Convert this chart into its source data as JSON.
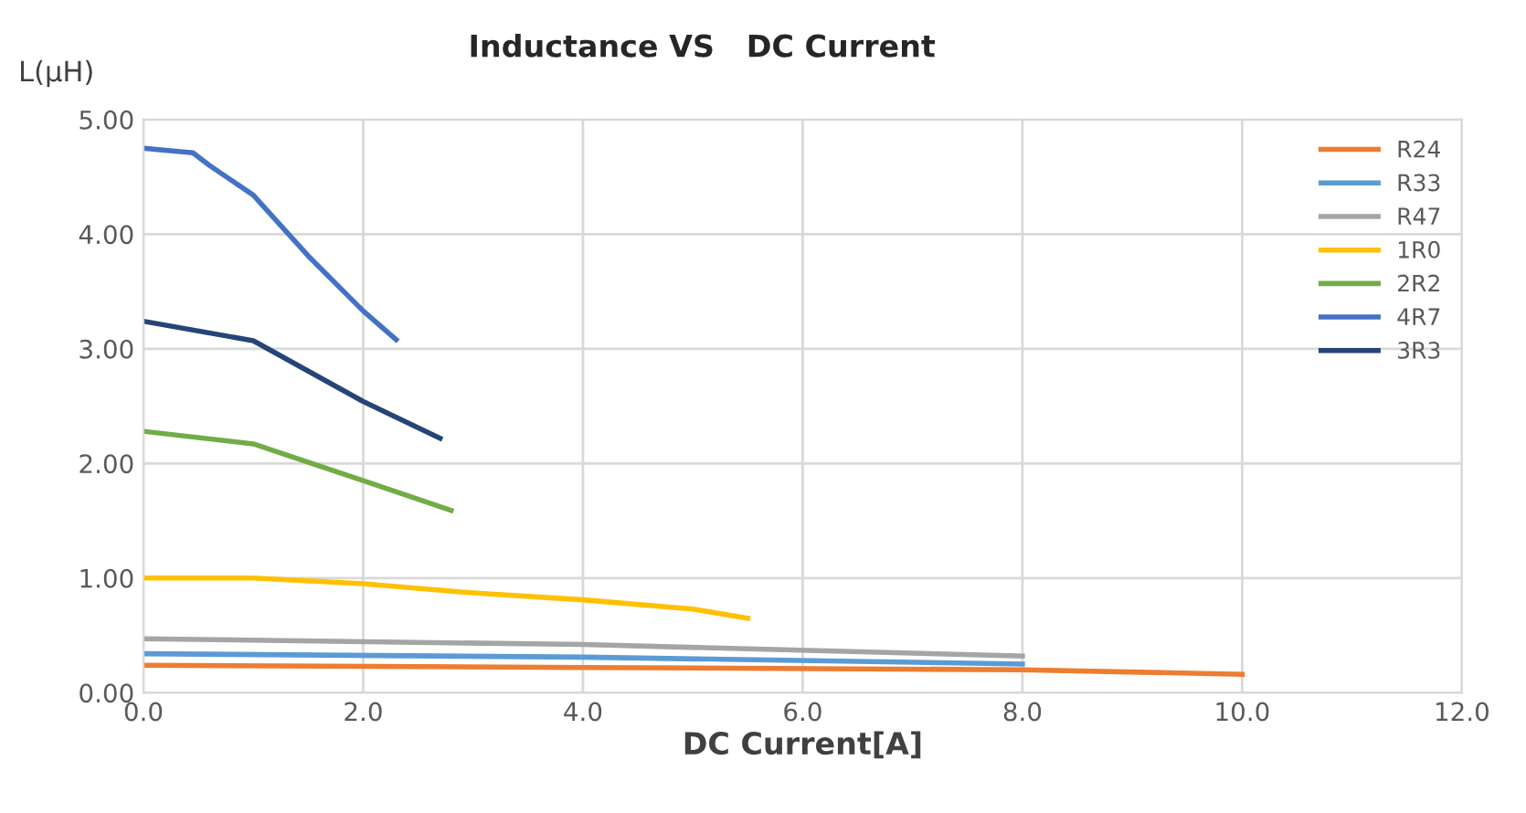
{
  "chart_data": {
    "type": "line",
    "title": "Inductance VS   DC Current",
    "xlabel": "DC Current[A]",
    "ylabel": "L(μH)",
    "xlim": [
      0,
      12
    ],
    "xticks": [
      {
        "value": 0,
        "label": "0.0"
      },
      {
        "value": 2,
        "label": "2.0"
      },
      {
        "value": 4,
        "label": "4.0"
      },
      {
        "value": 6,
        "label": "6.0"
      },
      {
        "value": 8,
        "label": "8.0"
      },
      {
        "value": 10,
        "label": "10.0"
      },
      {
        "value": 12,
        "label": "12.0"
      }
    ],
    "ylim": [
      0,
      5
    ],
    "yticks": [
      {
        "value": 0,
        "label": "0.00"
      },
      {
        "value": 1,
        "label": "1.00"
      },
      {
        "value": 2,
        "label": "2.00"
      },
      {
        "value": 3,
        "label": "3.00"
      },
      {
        "value": 4,
        "label": "4.00"
      },
      {
        "value": 5,
        "label": "5.00"
      }
    ],
    "grid": true,
    "legend": "top right",
    "marker": "none",
    "line_style": "solid",
    "series": [
      {
        "name": "R24",
        "color": "#ed7d31",
        "x": [
          0,
          4,
          8,
          10
        ],
        "values": [
          0.24,
          0.22,
          0.2,
          0.16
        ]
      },
      {
        "name": "R33",
        "color": "#5b9bd5",
        "x": [
          0,
          4,
          8
        ],
        "values": [
          0.34,
          0.31,
          0.25
        ]
      },
      {
        "name": "R47",
        "color": "#a5a5a5",
        "x": [
          0,
          4,
          8
        ],
        "values": [
          0.47,
          0.42,
          0.32
        ]
      },
      {
        "name": "1R0",
        "color": "#ffc000",
        "x": [
          0,
          1,
          2,
          3,
          4,
          5,
          5.5
        ],
        "values": [
          1.0,
          1.0,
          0.95,
          0.87,
          0.81,
          0.73,
          0.65
        ]
      },
      {
        "name": "2R2",
        "color": "#70ad47",
        "x": [
          0,
          1,
          2,
          2.8
        ],
        "values": [
          2.28,
          2.17,
          1.85,
          1.59
        ]
      },
      {
        "name": "4R7",
        "color": "#4472c4",
        "x": [
          0,
          0.45,
          0.6,
          1,
          1.5,
          2,
          2.3
        ],
        "values": [
          4.75,
          4.71,
          4.6,
          4.34,
          3.81,
          3.33,
          3.08
        ]
      },
      {
        "name": "3R3",
        "color": "#264478",
        "x": [
          0,
          1,
          2,
          2.7
        ],
        "values": [
          3.24,
          3.07,
          2.54,
          2.22
        ]
      }
    ]
  }
}
